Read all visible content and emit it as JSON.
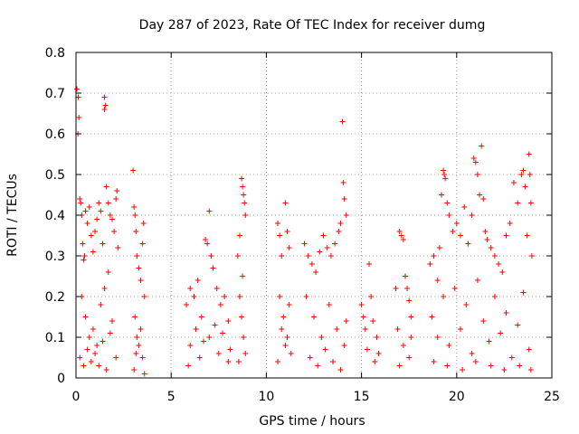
{
  "chart_data": {
    "type": "scatter",
    "title": "Day 287 of 2023, Rate Of TEC Index for receiver dumg",
    "xlabel": "GPS time / hours",
    "ylabel": "ROTI / TECUs",
    "xlim": [
      0,
      25
    ],
    "ylim": [
      0,
      0.8
    ],
    "xticks": [
      "0",
      "5",
      "10",
      "15",
      "20",
      "25"
    ],
    "yticks": [
      "0",
      "0.1",
      "0.2",
      "0.3",
      "0.4",
      "0.5",
      "0.6",
      "0.7",
      "0.8"
    ],
    "grid": true,
    "marker": "+",
    "color": "#ff0000",
    "series": [
      {
        "points": [
          [
            0.05,
            0.71
          ],
          [
            0.12,
            0.69
          ],
          [
            0.15,
            0.64
          ],
          [
            0.1,
            0.6
          ],
          [
            0.2,
            0.44
          ],
          [
            0.25,
            0.43
          ],
          [
            0.3,
            0.4
          ],
          [
            0.35,
            0.33
          ],
          [
            0.4,
            0.29
          ],
          [
            0.45,
            0.3
          ],
          [
            0.5,
            0.41
          ],
          [
            0.6,
            0.38
          ],
          [
            0.7,
            0.42
          ],
          [
            0.8,
            0.35
          ],
          [
            0.9,
            0.31
          ],
          [
            1.0,
            0.36
          ],
          [
            1.1,
            0.39
          ],
          [
            1.2,
            0.43
          ],
          [
            1.3,
            0.41
          ],
          [
            1.4,
            0.33
          ],
          [
            1.5,
            0.69
          ],
          [
            1.55,
            0.67
          ],
          [
            1.5,
            0.66
          ],
          [
            1.6,
            0.47
          ],
          [
            1.7,
            0.43
          ],
          [
            1.8,
            0.4
          ],
          [
            1.9,
            0.39
          ],
          [
            2.0,
            0.36
          ],
          [
            2.1,
            0.44
          ],
          [
            2.15,
            0.46
          ],
          [
            2.2,
            0.32
          ],
          [
            0.3,
            0.2
          ],
          [
            0.5,
            0.15
          ],
          [
            0.7,
            0.1
          ],
          [
            0.9,
            0.12
          ],
          [
            1.1,
            0.08
          ],
          [
            1.3,
            0.18
          ],
          [
            1.5,
            0.22
          ],
          [
            1.7,
            0.26
          ],
          [
            1.9,
            0.14
          ],
          [
            2.1,
            0.05
          ],
          [
            0.2,
            0.05
          ],
          [
            0.4,
            0.03
          ],
          [
            0.6,
            0.07
          ],
          [
            0.8,
            0.04
          ],
          [
            1.0,
            0.06
          ],
          [
            1.2,
            0.03
          ],
          [
            1.4,
            0.09
          ],
          [
            1.6,
            0.02
          ],
          [
            1.8,
            0.11
          ],
          [
            3.0,
            0.51
          ],
          [
            3.05,
            0.42
          ],
          [
            3.1,
            0.4
          ],
          [
            3.15,
            0.36
          ],
          [
            3.2,
            0.3
          ],
          [
            3.3,
            0.27
          ],
          [
            3.4,
            0.24
          ],
          [
            3.5,
            0.33
          ],
          [
            3.55,
            0.38
          ],
          [
            3.6,
            0.2
          ],
          [
            3.1,
            0.15
          ],
          [
            3.2,
            0.1
          ],
          [
            3.3,
            0.08
          ],
          [
            3.4,
            0.12
          ],
          [
            3.5,
            0.05
          ],
          [
            3.6,
            0.01
          ],
          [
            3.05,
            0.02
          ],
          [
            3.15,
            0.06
          ],
          [
            5.8,
            0.18
          ],
          [
            6.0,
            0.22
          ],
          [
            6.2,
            0.2
          ],
          [
            6.4,
            0.24
          ],
          [
            6.6,
            0.15
          ],
          [
            6.8,
            0.34
          ],
          [
            6.9,
            0.33
          ],
          [
            7.0,
            0.41
          ],
          [
            7.1,
            0.3
          ],
          [
            7.2,
            0.27
          ],
          [
            7.4,
            0.22
          ],
          [
            7.6,
            0.18
          ],
          [
            7.8,
            0.2
          ],
          [
            8.0,
            0.14
          ],
          [
            6.0,
            0.08
          ],
          [
            6.5,
            0.05
          ],
          [
            7.0,
            0.1
          ],
          [
            7.5,
            0.06
          ],
          [
            8.0,
            0.04
          ],
          [
            5.9,
            0.03
          ],
          [
            6.3,
            0.12
          ],
          [
            6.7,
            0.09
          ],
          [
            7.3,
            0.13
          ],
          [
            7.7,
            0.11
          ],
          [
            8.1,
            0.07
          ],
          [
            8.5,
            0.3
          ],
          [
            8.6,
            0.35
          ],
          [
            8.7,
            0.49
          ],
          [
            8.75,
            0.47
          ],
          [
            8.8,
            0.45
          ],
          [
            8.85,
            0.43
          ],
          [
            8.9,
            0.4
          ],
          [
            8.6,
            0.2
          ],
          [
            8.7,
            0.15
          ],
          [
            8.8,
            0.1
          ],
          [
            8.9,
            0.06
          ],
          [
            8.55,
            0.04
          ],
          [
            8.75,
            0.25
          ],
          [
            10.6,
            0.38
          ],
          [
            10.7,
            0.35
          ],
          [
            10.8,
            0.3
          ],
          [
            11.0,
            0.43
          ],
          [
            11.1,
            0.36
          ],
          [
            11.2,
            0.32
          ],
          [
            10.7,
            0.2
          ],
          [
            10.9,
            0.15
          ],
          [
            11.1,
            0.1
          ],
          [
            11.3,
            0.06
          ],
          [
            10.6,
            0.04
          ],
          [
            10.8,
            0.12
          ],
          [
            11.0,
            0.08
          ],
          [
            11.2,
            0.18
          ],
          [
            12.0,
            0.33
          ],
          [
            12.2,
            0.3
          ],
          [
            12.4,
            0.28
          ],
          [
            12.6,
            0.26
          ],
          [
            12.8,
            0.31
          ],
          [
            13.0,
            0.35
          ],
          [
            13.2,
            0.32
          ],
          [
            13.4,
            0.3
          ],
          [
            13.6,
            0.33
          ],
          [
            13.8,
            0.36
          ],
          [
            13.9,
            0.38
          ],
          [
            14.0,
            0.63
          ],
          [
            14.05,
            0.48
          ],
          [
            14.1,
            0.44
          ],
          [
            14.2,
            0.4
          ],
          [
            12.1,
            0.2
          ],
          [
            12.5,
            0.15
          ],
          [
            12.9,
            0.1
          ],
          [
            13.3,
            0.18
          ],
          [
            13.7,
            0.12
          ],
          [
            14.1,
            0.08
          ],
          [
            12.3,
            0.05
          ],
          [
            12.7,
            0.03
          ],
          [
            13.1,
            0.07
          ],
          [
            13.5,
            0.04
          ],
          [
            13.9,
            0.02
          ],
          [
            14.2,
            0.14
          ],
          [
            15.0,
            0.18
          ],
          [
            15.1,
            0.15
          ],
          [
            15.2,
            0.12
          ],
          [
            15.4,
            0.28
          ],
          [
            15.5,
            0.2
          ],
          [
            15.6,
            0.14
          ],
          [
            15.8,
            0.1
          ],
          [
            15.3,
            0.07
          ],
          [
            15.7,
            0.04
          ],
          [
            15.9,
            0.06
          ],
          [
            16.8,
            0.22
          ],
          [
            17.0,
            0.36
          ],
          [
            17.1,
            0.35
          ],
          [
            17.2,
            0.34
          ],
          [
            17.3,
            0.25
          ],
          [
            17.4,
            0.22
          ],
          [
            17.5,
            0.19
          ],
          [
            17.6,
            0.15
          ],
          [
            16.9,
            0.12
          ],
          [
            17.2,
            0.08
          ],
          [
            17.5,
            0.05
          ],
          [
            17.0,
            0.03
          ],
          [
            17.6,
            0.1
          ],
          [
            18.6,
            0.28
          ],
          [
            18.8,
            0.3
          ],
          [
            19.0,
            0.24
          ],
          [
            19.1,
            0.32
          ],
          [
            19.2,
            0.45
          ],
          [
            19.3,
            0.51
          ],
          [
            19.35,
            0.5
          ],
          [
            19.4,
            0.49
          ],
          [
            19.5,
            0.43
          ],
          [
            19.6,
            0.4
          ],
          [
            19.8,
            0.36
          ],
          [
            20.0,
            0.38
          ],
          [
            20.2,
            0.35
          ],
          [
            20.4,
            0.42
          ],
          [
            20.6,
            0.33
          ],
          [
            20.8,
            0.4
          ],
          [
            20.9,
            0.54
          ],
          [
            21.0,
            0.53
          ],
          [
            21.1,
            0.5
          ],
          [
            21.2,
            0.45
          ],
          [
            21.3,
            0.57
          ],
          [
            21.4,
            0.44
          ],
          [
            21.5,
            0.36
          ],
          [
            21.6,
            0.34
          ],
          [
            21.8,
            0.32
          ],
          [
            22.0,
            0.3
          ],
          [
            22.2,
            0.28
          ],
          [
            22.4,
            0.26
          ],
          [
            22.6,
            0.35
          ],
          [
            22.8,
            0.38
          ],
          [
            23.0,
            0.48
          ],
          [
            23.2,
            0.43
          ],
          [
            23.4,
            0.5
          ],
          [
            23.5,
            0.51
          ],
          [
            23.6,
            0.47
          ],
          [
            23.7,
            0.35
          ],
          [
            23.8,
            0.55
          ],
          [
            23.85,
            0.5
          ],
          [
            23.9,
            0.43
          ],
          [
            23.95,
            0.3
          ],
          [
            18.7,
            0.15
          ],
          [
            19.0,
            0.1
          ],
          [
            19.3,
            0.2
          ],
          [
            19.6,
            0.08
          ],
          [
            19.9,
            0.22
          ],
          [
            20.2,
            0.12
          ],
          [
            20.5,
            0.18
          ],
          [
            20.8,
            0.06
          ],
          [
            21.1,
            0.24
          ],
          [
            21.4,
            0.14
          ],
          [
            21.7,
            0.09
          ],
          [
            22.0,
            0.2
          ],
          [
            22.3,
            0.11
          ],
          [
            22.6,
            0.16
          ],
          [
            22.9,
            0.05
          ],
          [
            23.2,
            0.13
          ],
          [
            23.5,
            0.21
          ],
          [
            23.8,
            0.07
          ],
          [
            18.8,
            0.04
          ],
          [
            19.5,
            0.03
          ],
          [
            20.3,
            0.02
          ],
          [
            21.0,
            0.04
          ],
          [
            21.8,
            0.03
          ],
          [
            22.5,
            0.02
          ],
          [
            23.3,
            0.03
          ],
          [
            23.9,
            0.02
          ]
        ]
      }
    ]
  }
}
